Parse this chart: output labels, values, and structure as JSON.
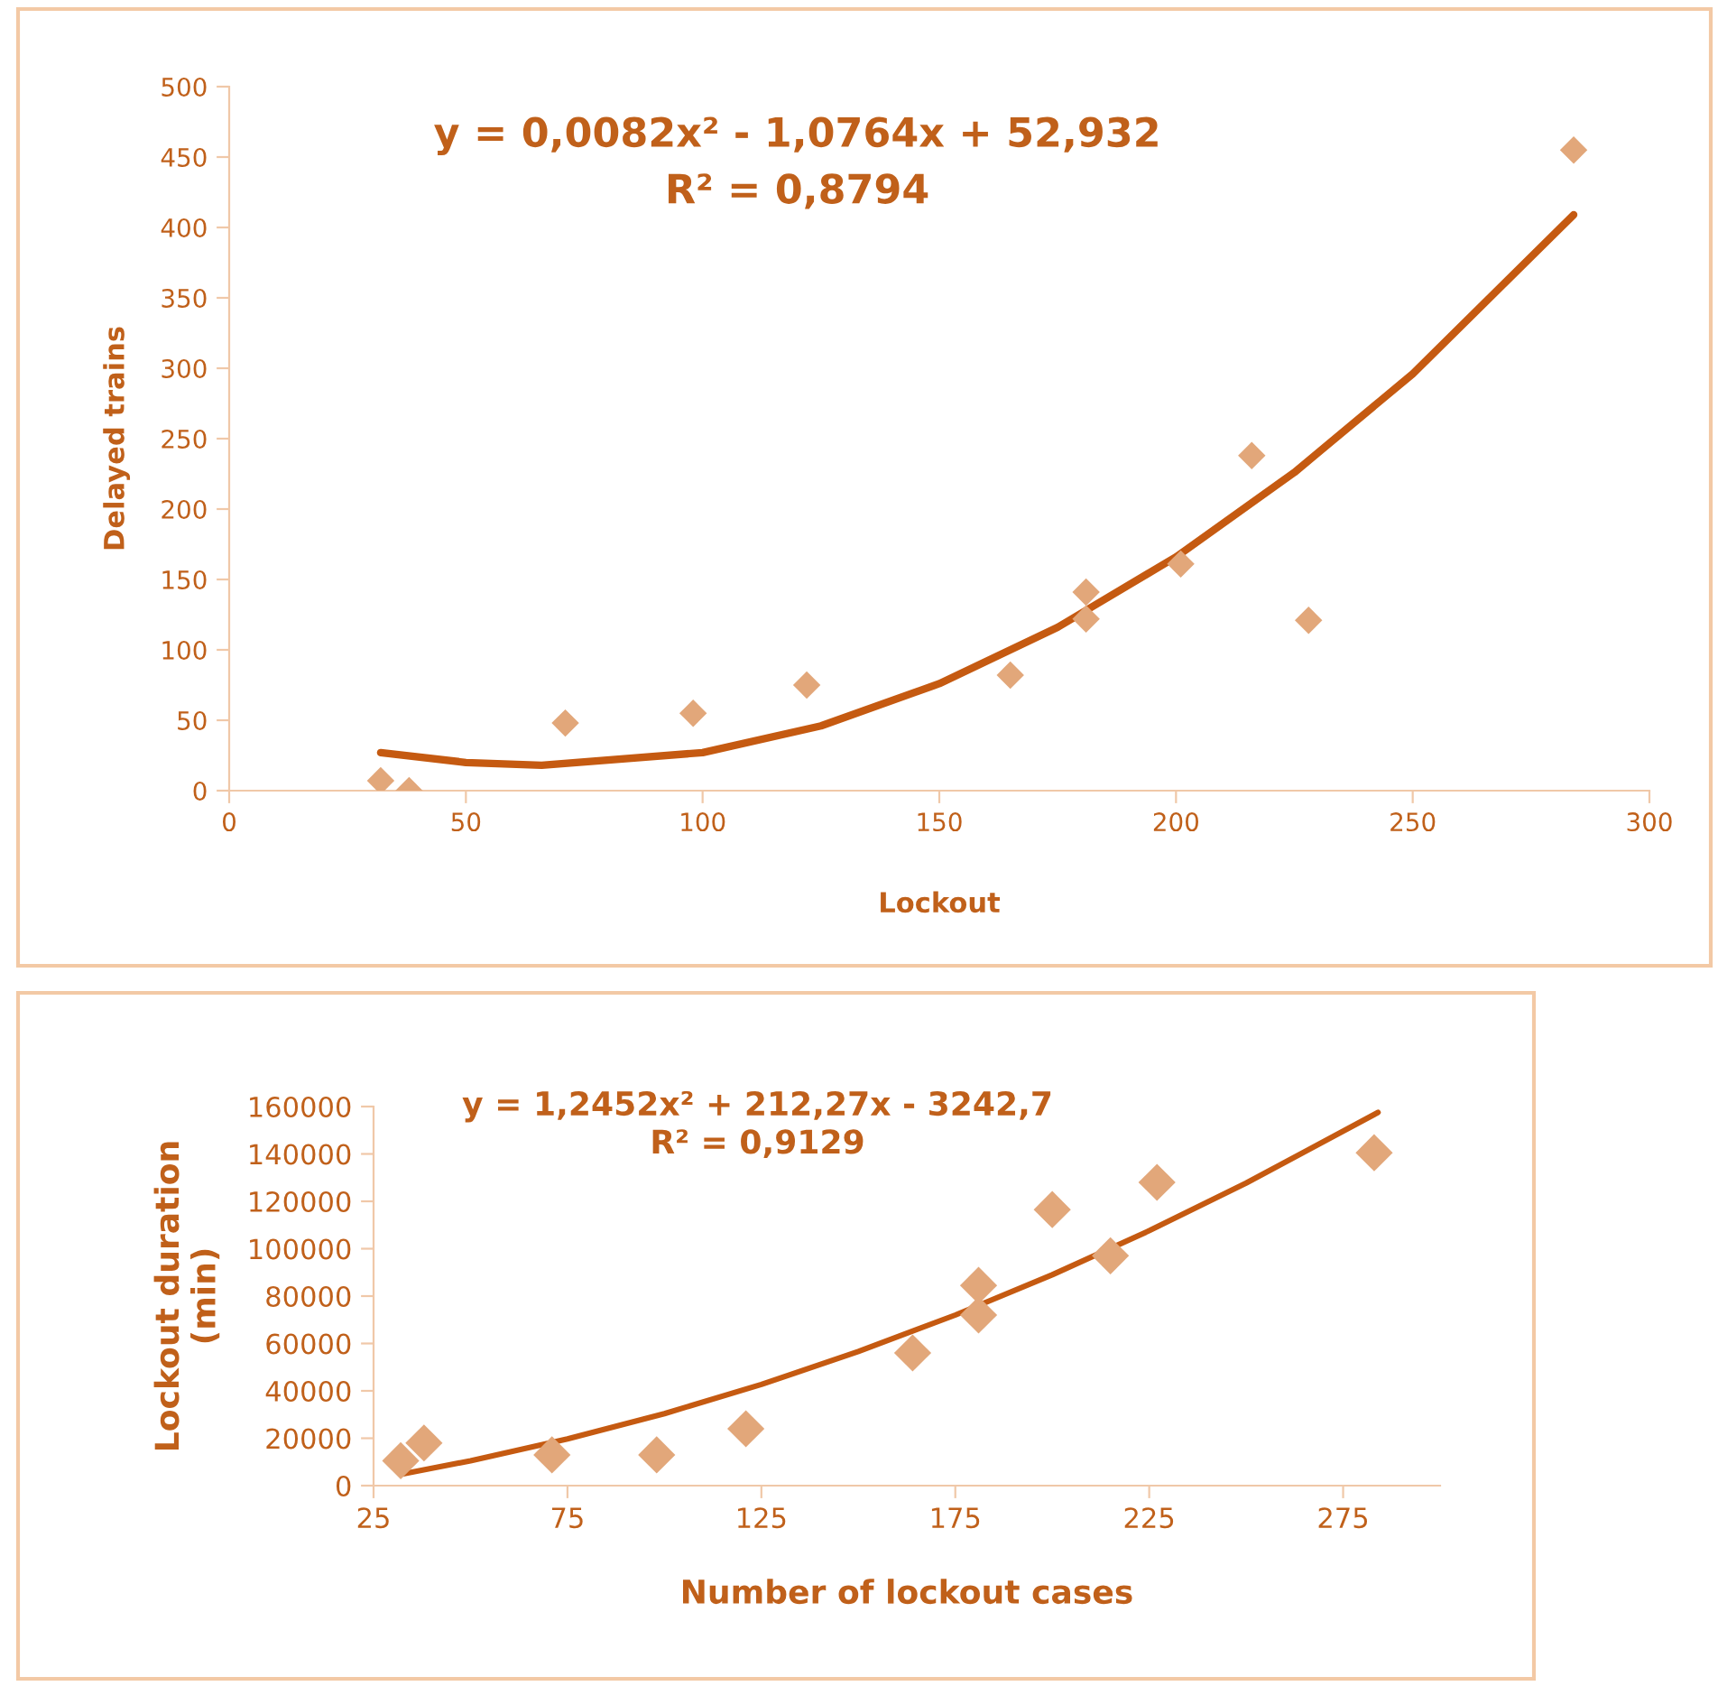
{
  "chart_data": [
    {
      "type": "scatter",
      "xlabel": "Lockout",
      "ylabel": "Delayed trains",
      "xlim": [
        0,
        300
      ],
      "xticks": [
        0,
        50,
        100,
        150,
        200,
        250,
        300
      ],
      "ylim": [
        0,
        500
      ],
      "yticks": [
        0,
        50,
        100,
        150,
        200,
        250,
        300,
        350,
        400,
        450,
        500
      ],
      "grid": false,
      "legend": false,
      "marker": "diamond",
      "annotations": [
        "y = 0,0082x² - 1,0764x + 52,932",
        "R² = 0,8794"
      ],
      "series": [
        {
          "color": "#e2a77a",
          "x": [
            32,
            38,
            71,
            98,
            122,
            165,
            181,
            181,
            201,
            216,
            228,
            284
          ],
          "values": [
            7,
            0,
            48,
            55,
            75,
            82,
            141,
            122,
            161,
            238,
            121,
            455
          ]
        },
        {
          "type": "line",
          "color": "#c55a11",
          "marker": "none",
          "line_style": "solid",
          "x": [
            32,
            50,
            66,
            100,
            125,
            150,
            175,
            200,
            225,
            250,
            284
          ],
          "values": [
            27,
            20,
            18,
            27,
            46,
            76,
            116,
            166,
            226,
            296,
            409
          ]
        }
      ]
    },
    {
      "type": "scatter",
      "xlabel": "Number of lockout cases",
      "ylabel": "Lockout duration\n(min)",
      "xlim": [
        25,
        300
      ],
      "xticks": [
        25,
        75,
        125,
        175,
        225,
        275
      ],
      "ylim": [
        0,
        160000
      ],
      "yticks": [
        0,
        20000,
        40000,
        60000,
        80000,
        100000,
        120000,
        140000,
        160000
      ],
      "grid": false,
      "legend": false,
      "marker": "diamond",
      "annotations": [
        "y = 1,2452x² + 212,27x - 3242,7",
        "R² = 0,9129"
      ],
      "series": [
        {
          "color": "#e2a77a",
          "x": [
            32,
            38,
            71,
            98,
            121,
            164,
            181,
            181,
            200,
            215,
            227,
            283
          ],
          "values": [
            10500,
            18000,
            13000,
            13000,
            24000,
            56000,
            72000,
            84500,
            116500,
            97000,
            128000,
            140500
          ]
        },
        {
          "type": "line",
          "color": "#c55a11",
          "marker": "none",
          "line_style": "solid",
          "x": [
            32,
            50,
            75,
            100,
            125,
            150,
            175,
            200,
            225,
            250,
            284
          ],
          "values": [
            4800,
            10500,
            19700,
            30400,
            42700,
            56600,
            72000,
            89000,
            107600,
            127700,
            157500
          ]
        }
      ]
    }
  ]
}
